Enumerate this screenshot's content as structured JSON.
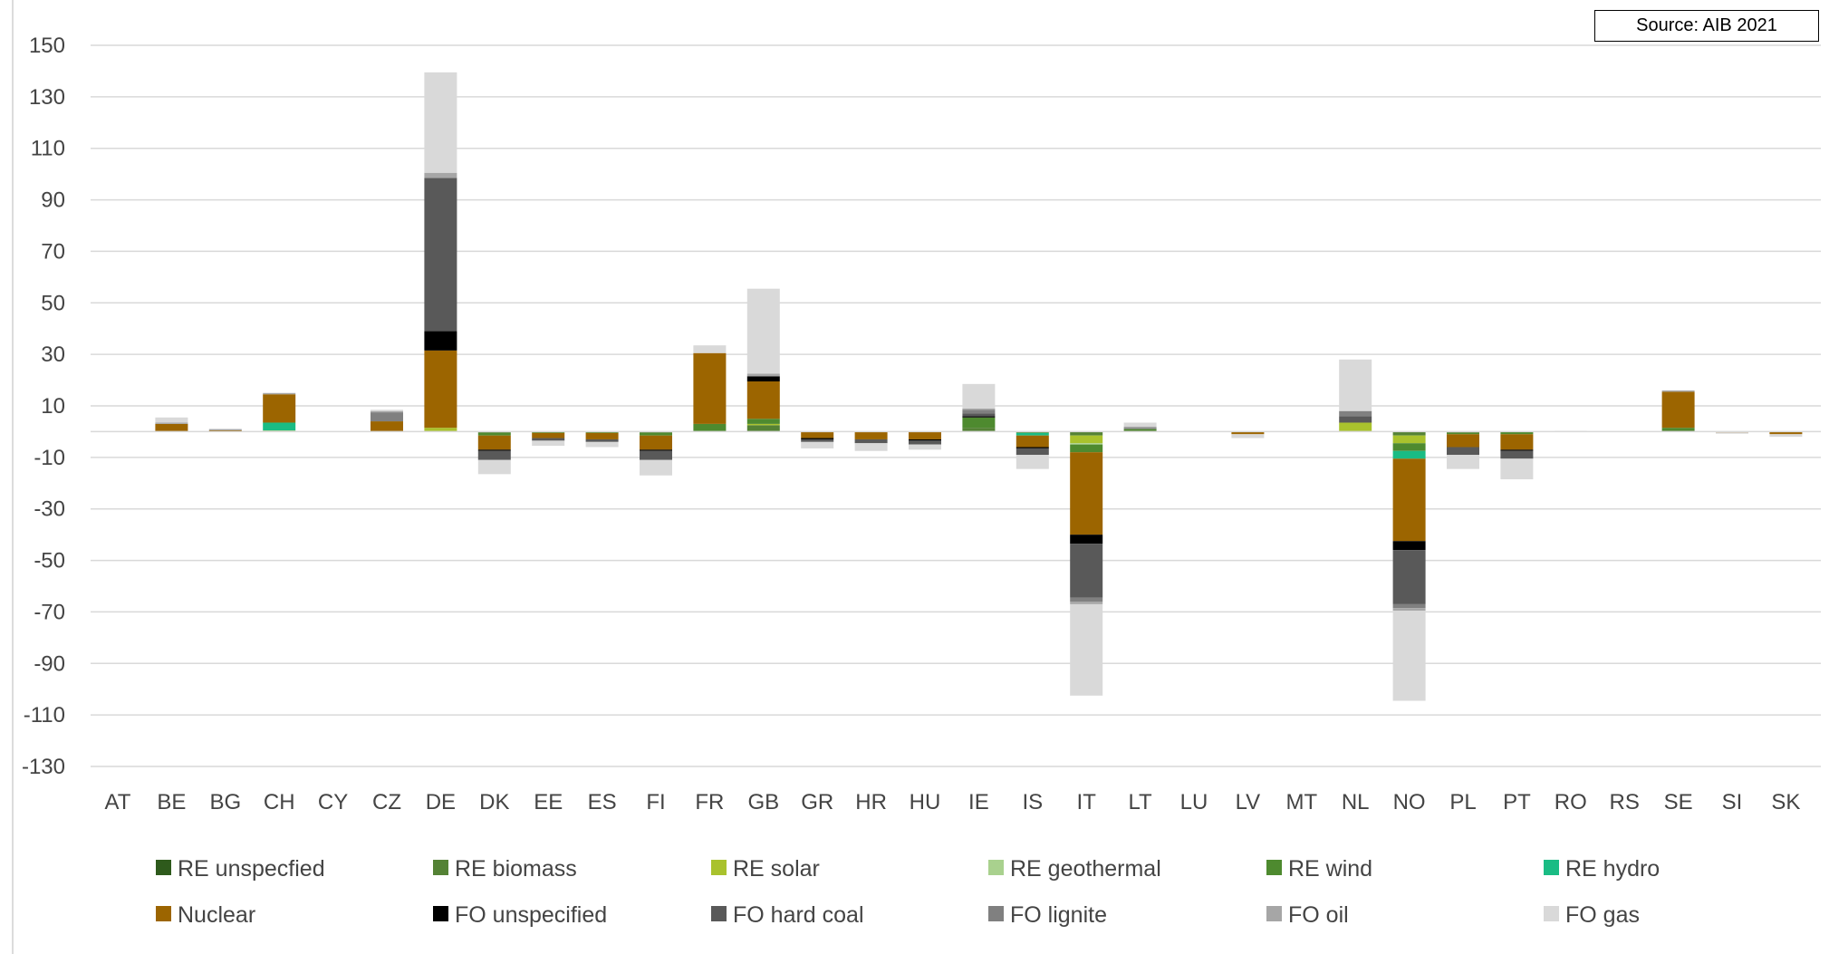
{
  "chart_data": {
    "type": "bar",
    "stacked": true,
    "source_note": "Source: AIB 2021",
    "ylim": [
      -130,
      150
    ],
    "yticks": [
      150,
      130,
      110,
      90,
      70,
      50,
      30,
      10,
      -10,
      -30,
      -50,
      -70,
      -90,
      -110,
      -130
    ],
    "grid": "horizontal",
    "legend_position": "bottom",
    "categories": [
      "AT",
      "BE",
      "BG",
      "CH",
      "CY",
      "CZ",
      "DE",
      "DK",
      "EE",
      "ES",
      "FI",
      "FR",
      "GB",
      "GR",
      "HR",
      "HU",
      "IE",
      "IS",
      "IT",
      "LT",
      "LU",
      "LV",
      "MT",
      "NL",
      "NO",
      "PL",
      "PT",
      "RO",
      "RS",
      "SE",
      "SI",
      "SK"
    ],
    "series": [
      {
        "name": "RE unspecfied",
        "color": "#2e5a1c",
        "values": [
          0,
          0,
          0,
          0,
          0,
          0,
          0,
          0,
          0,
          0,
          0,
          0,
          0,
          0,
          0,
          0,
          0,
          0,
          0,
          0,
          0,
          0,
          0,
          0,
          0,
          0,
          0,
          0,
          0,
          0,
          0,
          0
        ]
      },
      {
        "name": "RE biomass",
        "color": "#548235",
        "values": [
          0,
          0,
          0,
          0,
          0,
          0,
          0,
          -0.5,
          0,
          0,
          -0.5,
          0,
          2.5,
          0,
          0,
          0,
          1.5,
          0,
          -1.5,
          0.5,
          0,
          0,
          0,
          0,
          -1.5,
          -0.5,
          0,
          0,
          0,
          0.5,
          0,
          0
        ]
      },
      {
        "name": "RE solar",
        "color": "#a9c22d",
        "values": [
          0,
          0,
          0,
          0,
          0,
          0,
          1.5,
          0,
          0,
          0,
          0,
          0,
          0.5,
          0,
          0,
          0,
          0,
          0,
          -3,
          0,
          0,
          0,
          0,
          3.5,
          -3,
          0,
          0,
          0,
          0,
          0,
          0,
          0
        ]
      },
      {
        "name": "RE geothermal",
        "color": "#a9d18e",
        "values": [
          0,
          0,
          0,
          0.5,
          0,
          0,
          0,
          0,
          0,
          0,
          0,
          0,
          0,
          0,
          0,
          0,
          0,
          0,
          -0.5,
          0,
          0,
          0,
          0,
          0,
          0,
          0,
          0,
          0,
          0,
          0,
          0,
          0
        ]
      },
      {
        "name": "RE wind",
        "color": "#4e8a2f",
        "values": [
          0,
          0,
          0,
          0,
          0,
          0,
          0,
          -1,
          -0.5,
          -0.5,
          -1,
          3,
          2,
          0,
          0,
          0,
          4,
          -0.5,
          -3,
          0.5,
          0,
          0,
          0,
          0,
          -3,
          -0.5,
          -1,
          0,
          0,
          1,
          0,
          0
        ]
      },
      {
        "name": "RE hydro",
        "color": "#1abc84",
        "values": [
          0,
          0,
          0,
          3,
          0,
          0,
          0,
          0,
          0,
          0,
          0,
          0,
          0,
          0,
          0,
          0,
          0,
          -1,
          0,
          0,
          0,
          0,
          0,
          0,
          -3,
          0,
          0,
          0,
          0,
          0,
          0,
          0
        ]
      },
      {
        "name": "Nuclear",
        "color": "#9c6500",
        "values": [
          0,
          3,
          0.5,
          11,
          0,
          4,
          30,
          -5.5,
          -2,
          -2.5,
          -5.5,
          27.5,
          14.5,
          -2.5,
          -3,
          -3,
          0,
          -4.5,
          -32,
          0,
          0,
          -1,
          0,
          0,
          -32,
          -5,
          -6,
          0,
          0,
          14,
          -0.3,
          -1
        ]
      },
      {
        "name": "FO unspecified",
        "color": "#000000",
        "values": [
          0,
          0,
          0,
          0,
          0,
          0,
          7.5,
          -0.5,
          0,
          0,
          -0.5,
          0,
          2,
          -0.5,
          0,
          -0.5,
          0.5,
          -0.5,
          -3.5,
          0,
          0,
          0,
          0,
          0,
          -3.5,
          0,
          -0.5,
          0,
          0,
          0,
          0,
          0
        ]
      },
      {
        "name": "FO hard coal",
        "color": "#595959",
        "values": [
          0,
          0,
          0,
          0,
          0,
          0,
          59.5,
          -3.5,
          -1,
          -1,
          -3.5,
          0,
          0,
          -1,
          -1.5,
          -1.5,
          1,
          -2.5,
          -21,
          0,
          0,
          0,
          0,
          2.5,
          -21,
          -3,
          -3,
          0,
          0,
          0,
          0,
          0
        ]
      },
      {
        "name": "FO lignite",
        "color": "#808080",
        "values": [
          0,
          0,
          0,
          0,
          0,
          3.5,
          0,
          0,
          0,
          0,
          0,
          0,
          0,
          0,
          0,
          0,
          1.5,
          0,
          -1.5,
          0.5,
          0,
          0,
          0,
          2,
          -1.5,
          0,
          0,
          0,
          0,
          0,
          0,
          0
        ]
      },
      {
        "name": "FO oil",
        "color": "#a6a6a6",
        "values": [
          0,
          0.5,
          0.5,
          0.5,
          0,
          0.5,
          2,
          0,
          0,
          0,
          0,
          0,
          1,
          0,
          0,
          0,
          0.5,
          0,
          -1,
          0.5,
          0,
          0,
          0,
          0,
          -1,
          0,
          0,
          0,
          0,
          0.5,
          0,
          0
        ]
      },
      {
        "name": "FO gas",
        "color": "#d9d9d9",
        "values": [
          0,
          2,
          0,
          0,
          0,
          0.5,
          39,
          -5.5,
          -2,
          -2,
          -6,
          3,
          33,
          -2.5,
          -3,
          -2,
          9.5,
          -5.5,
          -35.5,
          1.5,
          0,
          -1.5,
          0,
          20,
          -35,
          -5.5,
          -8,
          0.3,
          0,
          0,
          -0.5,
          -1
        ]
      }
    ]
  }
}
